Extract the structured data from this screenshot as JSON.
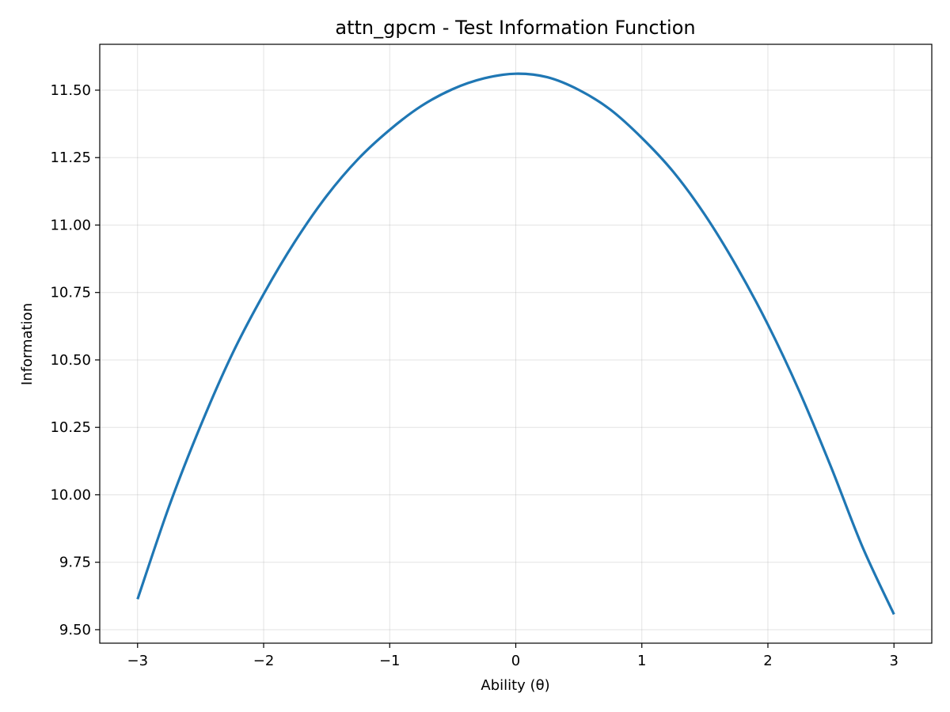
{
  "chart_data": {
    "type": "line",
    "title": "attn_gpcm - Test Information Function",
    "xlabel": "Ability (θ)",
    "ylabel": "Information",
    "xlim": [
      -3.3,
      3.3
    ],
    "ylim": [
      9.45,
      11.67
    ],
    "xticks": [
      -3,
      -2,
      -1,
      0,
      1,
      2,
      3
    ],
    "xtick_labels": [
      "−3",
      "−2",
      "−1",
      "0",
      "1",
      "2",
      "3"
    ],
    "yticks": [
      9.5,
      9.75,
      10.0,
      10.25,
      10.5,
      10.75,
      11.0,
      11.25,
      11.5
    ],
    "ytick_labels": [
      "9.50",
      "9.75",
      "10.00",
      "10.25",
      "10.50",
      "10.75",
      "11.00",
      "11.25",
      "11.50"
    ],
    "grid": true,
    "series": [
      {
        "color": "#1f77b4",
        "x": [
          -3.0,
          -2.75,
          -2.5,
          -2.25,
          -2.0,
          -1.75,
          -1.5,
          -1.25,
          -1.0,
          -0.75,
          -0.5,
          -0.25,
          0.0,
          0.25,
          0.5,
          0.75,
          1.0,
          1.25,
          1.5,
          1.75,
          2.0,
          2.25,
          2.5,
          2.75,
          3.0
        ],
        "y": [
          9.613,
          9.957,
          10.256,
          10.521,
          10.744,
          10.94,
          11.108,
          11.245,
          11.353,
          11.441,
          11.504,
          11.544,
          11.561,
          11.548,
          11.501,
          11.428,
          11.323,
          11.197,
          11.038,
          10.848,
          10.631,
          10.383,
          10.104,
          9.807,
          9.557
        ]
      }
    ]
  }
}
